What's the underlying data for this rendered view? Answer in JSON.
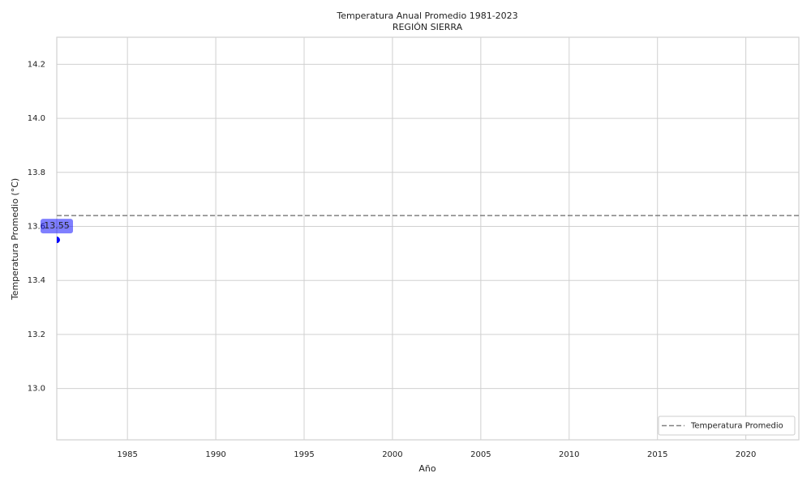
{
  "chart_data": {
    "type": "line",
    "title": "Temperatura Anual Promedio 1981-2023",
    "subtitle": "REGIÓN SIERRA",
    "x_label": "Año",
    "y_label": "Temperatura Promedio (°C)",
    "x": [
      1981
    ],
    "series": [
      {
        "color": "#0000ff",
        "values": [
          13.55
        ]
      }
    ],
    "hlines": [
      {
        "name": "Temperatura Promedio",
        "value": 13.64,
        "color": "#808080",
        "style": "dashed"
      }
    ],
    "xlim": [
      1981,
      2023
    ],
    "xticks": [
      1985,
      1990,
      1995,
      2000,
      2005,
      2010,
      2015,
      2020
    ],
    "ylim": [
      12.81,
      14.3
    ],
    "yticks": [
      {
        "value": 13,
        "label": "13.0"
      },
      13.2,
      13.4,
      13.6,
      13.8,
      {
        "value": 14,
        "label": "14.0"
      },
      14.2
    ],
    "grid": true,
    "legend_position": "lower right"
  }
}
